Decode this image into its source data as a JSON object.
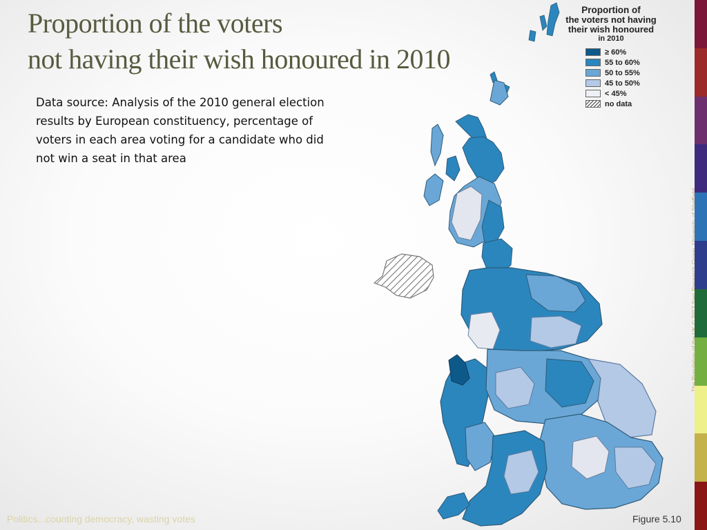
{
  "slide": {
    "title_line1": "Proportion of the voters",
    "title_line2": "not having their wish honoured in 2010",
    "description": "Data source: Analysis of the 2010 general election results by European constituency, percentage of voters in each area voting for a candidate who did not win a seat in that area"
  },
  "legend": {
    "title_line1": "Proportion of",
    "title_line2": "the voters not having",
    "title_line3": "their wish honoured",
    "title_line4": "in 2010",
    "items": [
      {
        "label": "≥ 60%",
        "color": "#0d5a8a"
      },
      {
        "label": "55 to 60%",
        "color": "#2b86bd"
      },
      {
        "label": "50 to 55%",
        "color": "#6aa7d6"
      },
      {
        "label": "45 to 50%",
        "color": "#b3c9e6"
      },
      {
        "label": "< 45%",
        "color": "#eef0f6"
      },
      {
        "label": "no data",
        "color": "hatched"
      }
    ]
  },
  "side_credit": "The Population of the UK © 2012 Sasi Research Group, University of Sheffield",
  "footer": {
    "left": "Politics...counting democracy, wasting votes",
    "right": "Figure 5.10"
  },
  "theme": {
    "stripes": [
      "#7b1738",
      "#9c2a2a",
      "#6e2f6e",
      "#3e2b7e",
      "#2e73b5",
      "#2f3d8d",
      "#1f6b3a",
      "#73b041",
      "#eef08a",
      "#c4b24b",
      "#8a1616"
    ]
  }
}
